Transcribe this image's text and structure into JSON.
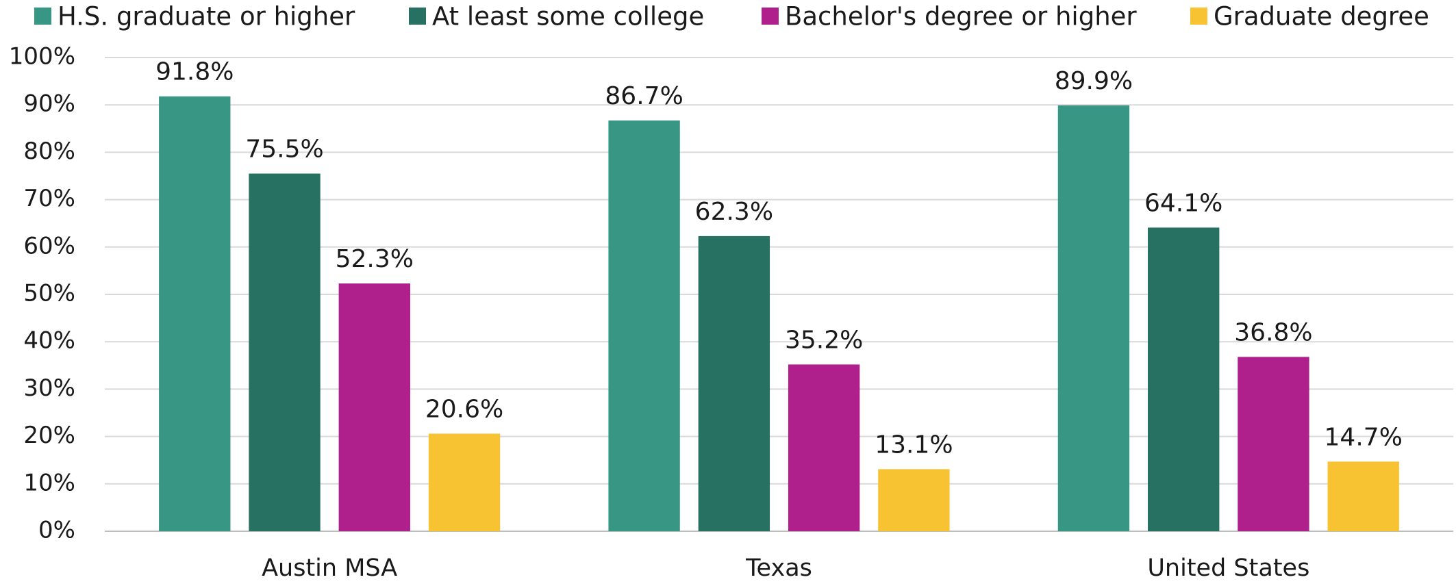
{
  "chart_data": {
    "type": "bar",
    "categories": [
      "Austin MSA",
      "Texas",
      "United States"
    ],
    "series": [
      {
        "name": "H.S. graduate or higher",
        "color": "#389684",
        "values": [
          91.8,
          86.7,
          89.9
        ],
        "value_labels": [
          "91.8%",
          "86.7%",
          "89.9%"
        ]
      },
      {
        "name": "At least some college",
        "color": "#277163",
        "values": [
          75.5,
          62.3,
          64.1
        ],
        "value_labels": [
          "75.5%",
          "62.3%",
          "64.1%"
        ]
      },
      {
        "name": "Bachelor's degree or higher",
        "color": "#b0208c",
        "values": [
          52.3,
          35.2,
          36.8
        ],
        "value_labels": [
          "52.3%",
          "35.2%",
          "36.8%"
        ]
      },
      {
        "name": "Graduate degree",
        "color": "#f8c333",
        "values": [
          20.6,
          13.1,
          14.7
        ],
        "value_labels": [
          "20.6%",
          "13.1%",
          "14.7%"
        ]
      }
    ],
    "ylim": [
      0,
      100
    ],
    "yticks": [
      {
        "value": 0,
        "label": "0%"
      },
      {
        "value": 10,
        "label": "10%"
      },
      {
        "value": 20,
        "label": "20%"
      },
      {
        "value": 30,
        "label": "30%"
      },
      {
        "value": 40,
        "label": "40%"
      },
      {
        "value": 50,
        "label": "50%"
      },
      {
        "value": 60,
        "label": "60%"
      },
      {
        "value": 70,
        "label": "70%"
      },
      {
        "value": 80,
        "label": "80%"
      },
      {
        "value": 90,
        "label": "90%"
      },
      {
        "value": 100,
        "label": "100%"
      }
    ],
    "grid": true,
    "legend": "top"
  }
}
